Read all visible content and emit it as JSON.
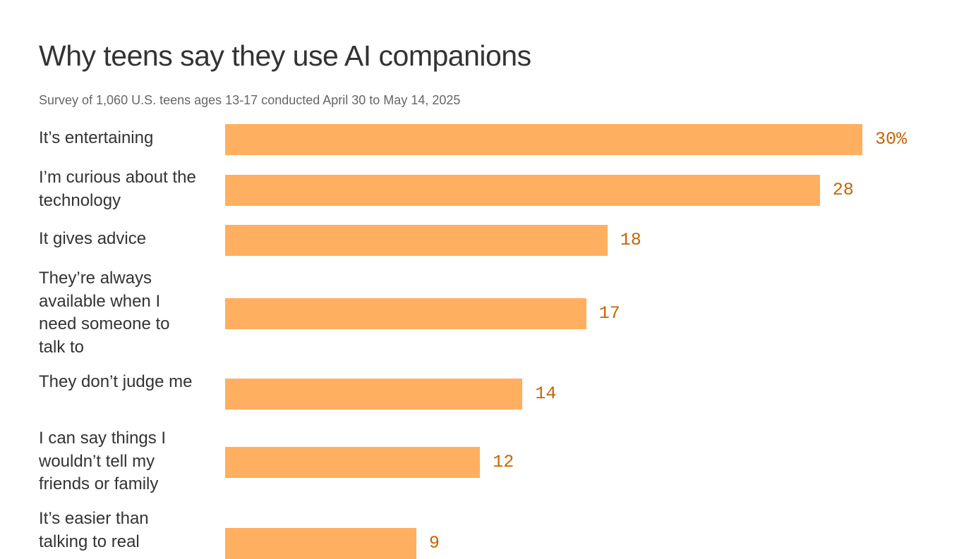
{
  "chart_data": {
    "type": "bar",
    "orientation": "horizontal",
    "title": "Why teens say they use AI companions",
    "subtitle": "Survey of 1,060 U.S. teens ages 13-17 conducted April 30 to May 14, 2025",
    "categories": [
      "It’s entertaining",
      "I’m curious about the technology",
      "It gives advice",
      "They’re always available when I need someone to talk to",
      "They don’t judge me",
      "I can say things I wouldn’t tell my friends or family",
      "It’s easier than talking to real"
    ],
    "values": [
      30,
      28,
      18,
      17,
      14,
      12,
      9
    ],
    "value_labels": [
      "30%",
      "28",
      "18",
      "17",
      "14",
      "12",
      "9"
    ],
    "unit": "%",
    "xlim": [
      0,
      30
    ],
    "grid": false,
    "bar_color": "#ffaf5f",
    "label_color": "#c86400"
  }
}
